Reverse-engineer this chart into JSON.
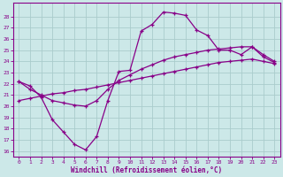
{
  "xlabel": "Windchill (Refroidissement éolien,°C)",
  "xlim_min": -0.5,
  "xlim_max": 23.5,
  "ylim_min": 15.5,
  "ylim_max": 29.2,
  "xticks": [
    0,
    1,
    2,
    3,
    4,
    5,
    6,
    7,
    8,
    9,
    10,
    11,
    12,
    13,
    14,
    15,
    16,
    17,
    18,
    19,
    20,
    21,
    22,
    23
  ],
  "yticks": [
    16,
    17,
    18,
    19,
    20,
    21,
    22,
    23,
    24,
    25,
    26,
    27,
    28
  ],
  "bg_color": "#cce8e8",
  "grid_color": "#aacccc",
  "line_color": "#880088",
  "line1_x": [
    0,
    1,
    2,
    3,
    4,
    5,
    6,
    7,
    8,
    9,
    10,
    11,
    12,
    13,
    14,
    15,
    16,
    17,
    18,
    19,
    20,
    21,
    22,
    23
  ],
  "line1_y": [
    22.2,
    21.8,
    20.8,
    18.8,
    17.7,
    16.6,
    16.1,
    17.3,
    20.5,
    23.1,
    23.2,
    26.7,
    27.3,
    28.4,
    28.3,
    28.1,
    26.8,
    26.3,
    25.0,
    25.0,
    24.6,
    25.3,
    24.4,
    23.9
  ],
  "line2_x": [
    0,
    1,
    2,
    3,
    4,
    5,
    6,
    7,
    8,
    9,
    10,
    11,
    12,
    13,
    14,
    15,
    16,
    17,
    18,
    19,
    20,
    21,
    22,
    23
  ],
  "line2_y": [
    22.2,
    21.5,
    21.0,
    20.5,
    20.3,
    20.1,
    20.0,
    20.5,
    21.5,
    22.3,
    22.8,
    23.3,
    23.7,
    24.1,
    24.4,
    24.6,
    24.8,
    25.0,
    25.1,
    25.2,
    25.3,
    25.3,
    24.6,
    24.0
  ],
  "line3_x": [
    0,
    1,
    2,
    3,
    4,
    5,
    6,
    7,
    8,
    9,
    10,
    11,
    12,
    13,
    14,
    15,
    16,
    17,
    18,
    19,
    20,
    21,
    22,
    23
  ],
  "line3_y": [
    20.5,
    20.7,
    20.9,
    21.1,
    21.2,
    21.4,
    21.5,
    21.7,
    21.9,
    22.1,
    22.3,
    22.5,
    22.7,
    22.9,
    23.1,
    23.3,
    23.5,
    23.7,
    23.9,
    24.0,
    24.1,
    24.2,
    24.0,
    23.8
  ]
}
